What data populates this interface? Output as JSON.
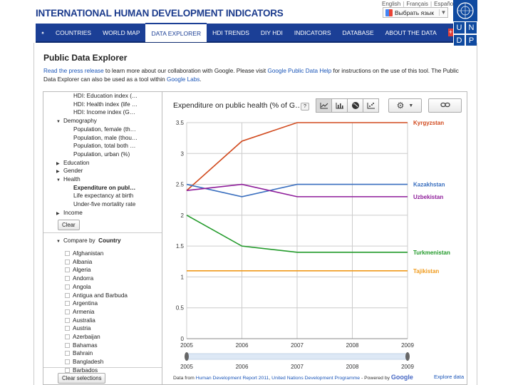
{
  "header": {
    "brand": "INTERNATIONAL HUMAN DEVELOPMENT INDICATORS",
    "languages": [
      "English",
      "Français",
      "Español"
    ],
    "translate_label": "Выбрать язык",
    "undp_letters": [
      "U",
      "N",
      "D",
      "P"
    ]
  },
  "nav": {
    "items": [
      {
        "label": "COUNTRIES",
        "active": false
      },
      {
        "label": "WORLD MAP",
        "active": false
      },
      {
        "label": "DATA EXPLORER",
        "active": true
      },
      {
        "label": "HDI TRENDS",
        "active": false
      },
      {
        "label": "DIY HDI",
        "active": false
      },
      {
        "label": "INDICATORS",
        "active": false
      },
      {
        "label": "DATABASE",
        "active": false
      },
      {
        "label": "ABOUT THE DATA",
        "active": false
      }
    ],
    "plus_label": "+"
  },
  "page": {
    "title": "Public Data Explorer",
    "intro": {
      "link1": "Read the press release",
      "text1": " to learn more about our collaboration with Google. Please visit ",
      "link2": "Google Public Data Help",
      "text2": " for instructions on the use of this tool. The Public Data Explorer can also be used as a tool within ",
      "link3": "Google Labs",
      "text3": "."
    }
  },
  "sidebar": {
    "tree": [
      {
        "label": "HDI: Education index (…",
        "indent": 2,
        "bold": false,
        "arrow": ""
      },
      {
        "label": "HDI: Health index (life …",
        "indent": 2,
        "bold": false,
        "arrow": ""
      },
      {
        "label": "HDI: Income index (G…",
        "indent": 2,
        "bold": false,
        "arrow": ""
      },
      {
        "label": "Demography",
        "indent": 1,
        "bold": false,
        "arrow": "▼"
      },
      {
        "label": "Population, female (th…",
        "indent": 2,
        "bold": false,
        "arrow": ""
      },
      {
        "label": "Population, male (thou…",
        "indent": 2,
        "bold": false,
        "arrow": ""
      },
      {
        "label": "Population, total both …",
        "indent": 2,
        "bold": false,
        "arrow": ""
      },
      {
        "label": "Population, urban (%)",
        "indent": 2,
        "bold": false,
        "arrow": ""
      },
      {
        "label": "Education",
        "indent": 1,
        "bold": false,
        "arrow": "▶"
      },
      {
        "label": "Gender",
        "indent": 1,
        "bold": false,
        "arrow": "▶"
      },
      {
        "label": "Health",
        "indent": 1,
        "bold": false,
        "arrow": "▼"
      },
      {
        "label": "Expenditure on publ…",
        "indent": 2,
        "bold": true,
        "arrow": ""
      },
      {
        "label": "Life expectancy at birth",
        "indent": 2,
        "bold": false,
        "arrow": ""
      },
      {
        "label": "Under-five mortality rate",
        "indent": 2,
        "bold": false,
        "arrow": ""
      },
      {
        "label": "Income",
        "indent": 1,
        "bold": false,
        "arrow": "▶"
      }
    ],
    "clear_label": "Clear",
    "compare_label": "Compare by",
    "compare_value": "Country",
    "countries": [
      "Afghanistan",
      "Albania",
      "Algeria",
      "Andorra",
      "Angola",
      "Antigua and Barbuda",
      "Argentina",
      "Armenia",
      "Australia",
      "Austria",
      "Azerbaijan",
      "Bahamas",
      "Bahrain",
      "Bangladesh",
      "Barbados"
    ],
    "clear_selections_label": "Clear selections"
  },
  "chart_panel": {
    "title": "Expenditure on public health (% of G…",
    "help_label": "?",
    "footer": {
      "prefix": "Data from ",
      "link1": "Human Development Report 2011",
      "mid": ", ",
      "link2": "United Nations Development Programme",
      "powered": " - Powered by ",
      "google": "Google"
    },
    "explore_label": "Explore data",
    "slider_labels": [
      "2005",
      "2006",
      "2007",
      "2008",
      "2009"
    ]
  },
  "chart_data": {
    "type": "line",
    "title": "Expenditure on public health (% of G…",
    "x": [
      2005,
      2006,
      2007,
      2008,
      2009
    ],
    "xlim": [
      2005,
      2009
    ],
    "ylim": [
      0,
      3.5
    ],
    "yticks": [
      0,
      0.5,
      1,
      1.5,
      2,
      2.5,
      3,
      3.5
    ],
    "grid": true,
    "legend_placement": "right end labels",
    "series": [
      {
        "name": "Kyrgyzstan",
        "color": "#d14a1e",
        "values": [
          2.4,
          3.2,
          3.5,
          3.5,
          3.5
        ]
      },
      {
        "name": "Kazakhstan",
        "color": "#3a6fbf",
        "values": [
          2.5,
          2.3,
          2.5,
          2.5,
          2.5
        ]
      },
      {
        "name": "Uzbekistan",
        "color": "#8e1c9a",
        "values": [
          2.4,
          2.5,
          2.3,
          2.3,
          2.3
        ]
      },
      {
        "name": "Turkmenistan",
        "color": "#229a2a",
        "values": [
          2.0,
          1.5,
          1.4,
          1.4,
          1.4
        ]
      },
      {
        "name": "Tajikistan",
        "color": "#f09a1b",
        "values": [
          1.1,
          1.1,
          1.1,
          1.1,
          1.1
        ]
      }
    ]
  }
}
